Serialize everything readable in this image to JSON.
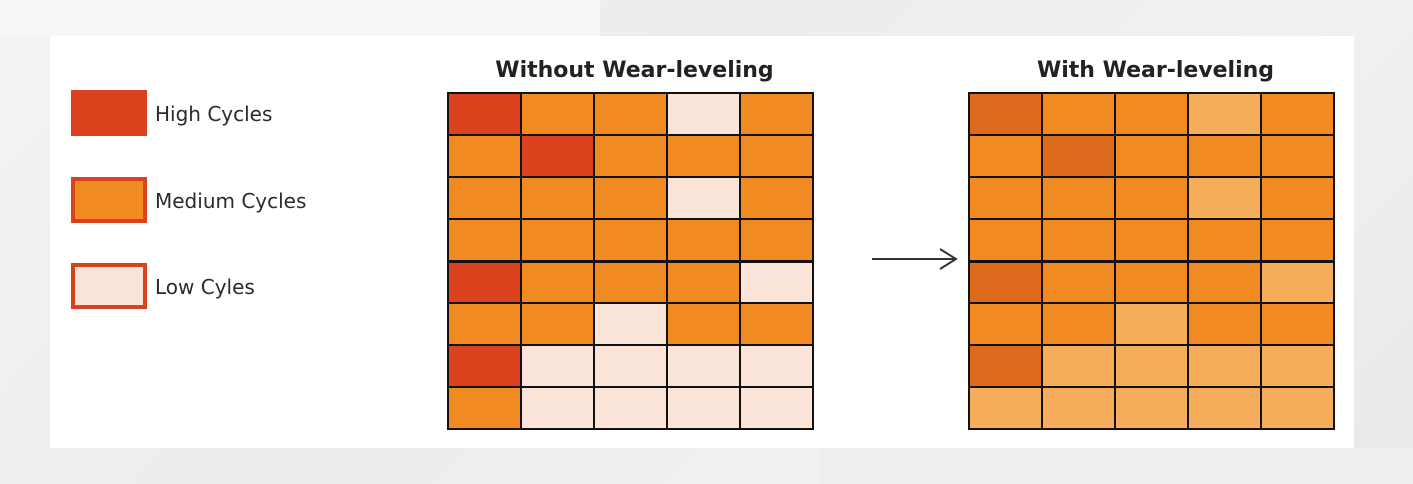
{
  "colors": {
    "high": "#d9421d",
    "medium": "#f28a22",
    "low": "#fbe5d8",
    "leveled_dark": "#de6b1c",
    "leveled_medium": "#f28a22",
    "leveled_light": "#f6ad5c"
  },
  "legend": [
    {
      "label": "High Cycles",
      "level": "high"
    },
    {
      "label": "Medium Cycles",
      "level": "medium"
    },
    {
      "label": "Low Cyles",
      "level": "low"
    }
  ],
  "without_grid": {
    "title": "Without Wear-leveling",
    "rows": [
      [
        "high",
        "medium",
        "medium",
        "low",
        "medium"
      ],
      [
        "medium",
        "high",
        "medium",
        "medium",
        "medium"
      ],
      [
        "medium",
        "medium",
        "medium",
        "low",
        "medium"
      ],
      [
        "medium",
        "medium",
        "medium",
        "medium",
        "medium"
      ],
      [
        "high",
        "medium",
        "medium",
        "medium",
        "low"
      ],
      [
        "medium",
        "medium",
        "low",
        "medium",
        "medium"
      ],
      [
        "high",
        "low",
        "low",
        "low",
        "low"
      ],
      [
        "medium",
        "low",
        "low",
        "low",
        "low"
      ]
    ]
  },
  "arrow_icon": "right-arrow-icon",
  "with_grid": {
    "title": "With Wear-leveling",
    "rows": [
      [
        "leveled_dark",
        "leveled_medium",
        "leveled_medium",
        "leveled_light",
        "leveled_medium"
      ],
      [
        "leveled_medium",
        "leveled_dark",
        "leveled_medium",
        "leveled_medium",
        "leveled_medium"
      ],
      [
        "leveled_medium",
        "leveled_medium",
        "leveled_medium",
        "leveled_light",
        "leveled_medium"
      ],
      [
        "leveled_medium",
        "leveled_medium",
        "leveled_medium",
        "leveled_medium",
        "leveled_medium"
      ],
      [
        "leveled_dark",
        "leveled_medium",
        "leveled_medium",
        "leveled_medium",
        "leveled_light"
      ],
      [
        "leveled_medium",
        "leveled_medium",
        "leveled_light",
        "leveled_medium",
        "leveled_medium"
      ],
      [
        "leveled_dark",
        "leveled_light",
        "leveled_light",
        "leveled_light",
        "leveled_light"
      ],
      [
        "leveled_light",
        "leveled_light",
        "leveled_light",
        "leveled_light",
        "leveled_light"
      ]
    ]
  }
}
